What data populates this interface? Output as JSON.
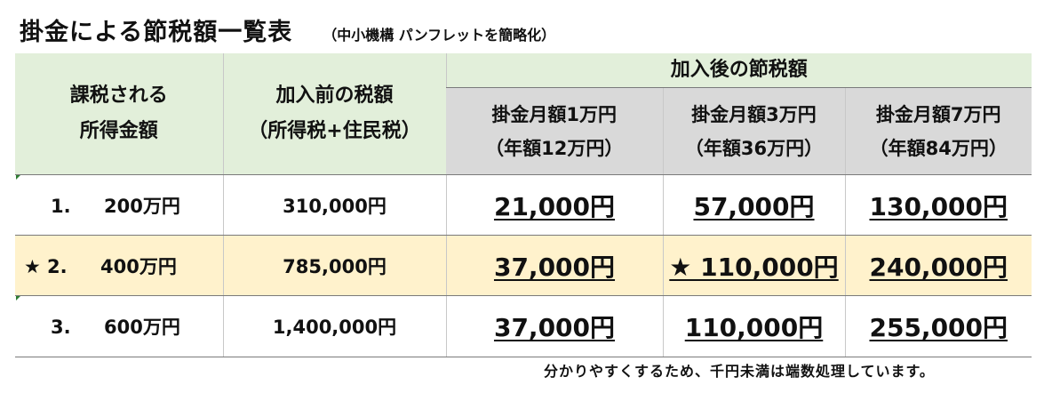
{
  "title": "掛金による節税額一覧表",
  "subtitle": "（中小機構 パンフレットを簡略化）",
  "header": {
    "col1_line1": "課税される",
    "col1_line2": "所得金額",
    "col2_line1": "加入前の税額",
    "col2_line2": "（所得税+住民税）",
    "group": "加入後の節税額",
    "plans": [
      {
        "line1": "掛金月額1万円",
        "line2": "（年額12万円）"
      },
      {
        "line1": "掛金月額3万円",
        "line2": "（年額36万円）"
      },
      {
        "line1": "掛金月額7万円",
        "line2": "（年額84万円）"
      }
    ]
  },
  "rows": [
    {
      "star": "",
      "num": "1.",
      "income": "200万円",
      "before": "310,000円",
      "savings": [
        "21,000円",
        "57,000円",
        "130,000円"
      ],
      "highlight": false
    },
    {
      "star": "★",
      "num": "2.",
      "income": "400万円",
      "before": "785,000円",
      "savings": [
        "37,000円",
        "★ 110,000円",
        "240,000円"
      ],
      "highlight": true
    },
    {
      "star": "",
      "num": "3.",
      "income": "600万円",
      "before": "1,400,000円",
      "savings": [
        "37,000円",
        "110,000円",
        "255,000円"
      ],
      "highlight": false
    }
  ],
  "note": "分かりやすくするため、千円未満は端数処理しています。",
  "colors": {
    "header_bg": "#e2efda",
    "subheader_bg": "#d9d9d9",
    "highlight_bg": "#fff2cc"
  }
}
